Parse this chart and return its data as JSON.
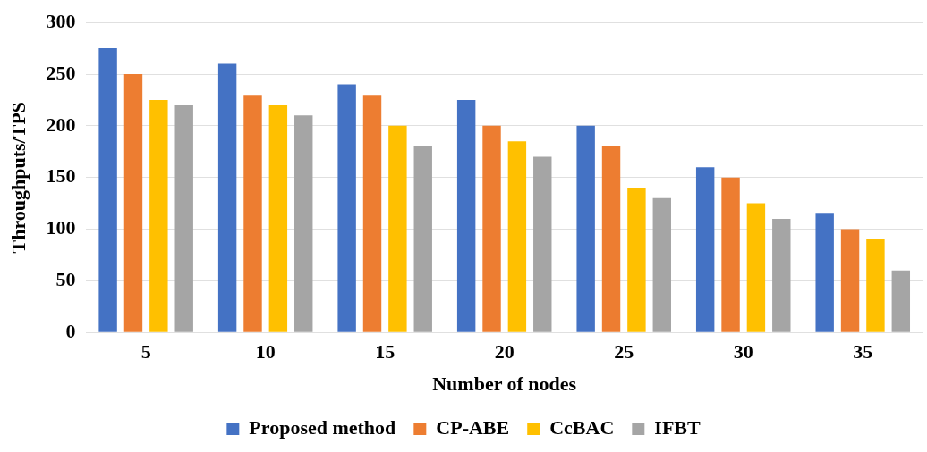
{
  "chart_data": {
    "type": "bar",
    "xlabel": "Number of nodes",
    "ylabel": "Throughputs/TPS",
    "categories": [
      "5",
      "10",
      "15",
      "20",
      "25",
      "30",
      "35"
    ],
    "series": [
      {
        "name": "Proposed method",
        "color": "#4472c4",
        "values": [
          275,
          260,
          240,
          225,
          200,
          160,
          115
        ]
      },
      {
        "name": "CP-ABE",
        "color": "#ed7d31",
        "values": [
          250,
          230,
          230,
          200,
          180,
          150,
          100
        ]
      },
      {
        "name": "CcBAC",
        "color": "#ffc000",
        "values": [
          225,
          220,
          200,
          185,
          140,
          125,
          90
        ]
      },
      {
        "name": "IFBT",
        "color": "#a5a5a5",
        "values": [
          220,
          210,
          180,
          170,
          130,
          110,
          60
        ]
      }
    ],
    "ylim": [
      0,
      300
    ],
    "yticks": [
      0,
      50,
      100,
      150,
      200,
      250,
      300
    ],
    "grid": "y",
    "legend": "bottom"
  }
}
